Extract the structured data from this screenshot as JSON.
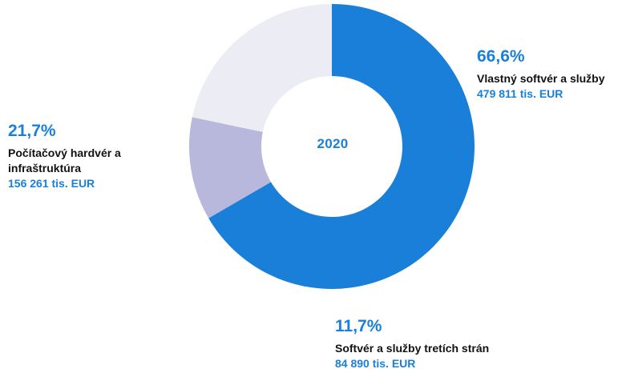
{
  "chart_data": {
    "type": "pie",
    "donut": true,
    "center_label": "2020",
    "slices": [
      {
        "name": "Vlastný softvér a služby",
        "percent": 66.6,
        "percent_label": "66,6%",
        "value_label": "479 811 tis. EUR",
        "color": "#1a7fd8"
      },
      {
        "name": "Softvér a služby tretích strán",
        "percent": 11.7,
        "percent_label": "11,7%",
        "value_label": "84 890 tis. EUR",
        "color": "#b8b8dc"
      },
      {
        "name": "Počítačový hardvér a\ninfraštruktúra",
        "percent": 21.7,
        "percent_label": "21,7%",
        "value_label": "156 261 tis. EUR",
        "color": "#ececf4"
      }
    ],
    "legend": "none"
  }
}
